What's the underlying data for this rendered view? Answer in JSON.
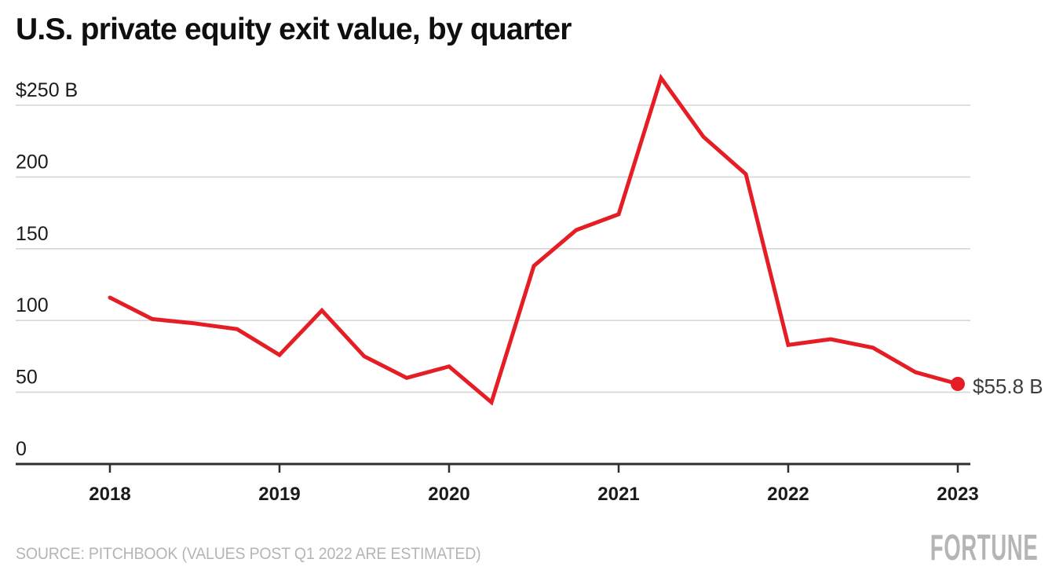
{
  "header": {
    "title": "U.S. private equity exit value, by quarter"
  },
  "footer": {
    "source": "SOURCE: PITCHBOOK (VALUES POST Q1 2022 ARE ESTIMATED)",
    "brand": "FORTUNE"
  },
  "colors": {
    "accent_red": "#e51e25",
    "gridline": "#d6d6d6",
    "axis": "#2e2e2e",
    "tick_label": "#1b1b1b",
    "title_text": "#0f0f0f",
    "muted_gray": "#b5b5b5",
    "end_label": "#3d3d3d"
  },
  "chart_data": {
    "type": "line",
    "title": "U.S. private equity exit value, by quarter",
    "unit": "billions of U.S. dollars",
    "x": [
      "2018 Q1",
      "2018 Q2",
      "2018 Q3",
      "2018 Q4",
      "2019 Q1",
      "2019 Q2",
      "2019 Q3",
      "2019 Q4",
      "2020 Q1",
      "2020 Q2",
      "2020 Q3",
      "2020 Q4",
      "2021 Q1",
      "2021 Q2",
      "2021 Q3",
      "2021 Q4",
      "2022 Q1",
      "2022 Q2",
      "2022 Q3",
      "2022 Q4",
      "2023 Q1"
    ],
    "values": [
      116,
      101,
      98,
      94,
      76,
      107,
      75,
      60,
      68,
      43,
      138,
      163,
      174,
      269,
      228,
      202,
      83,
      87,
      81,
      64,
      55.8
    ],
    "x_tick_labels": [
      "2018",
      "2019",
      "2020",
      "2021",
      "2022",
      "2023"
    ],
    "y_ticks": [
      0,
      50,
      100,
      150,
      200,
      250
    ],
    "y_tick_labels": [
      "0",
      "50",
      "100",
      "150",
      "200",
      "$250 B"
    ],
    "ylim": [
      0,
      275
    ],
    "grid": "horizontal",
    "legend_position": "none",
    "end_point_label": "$55.8 B"
  }
}
